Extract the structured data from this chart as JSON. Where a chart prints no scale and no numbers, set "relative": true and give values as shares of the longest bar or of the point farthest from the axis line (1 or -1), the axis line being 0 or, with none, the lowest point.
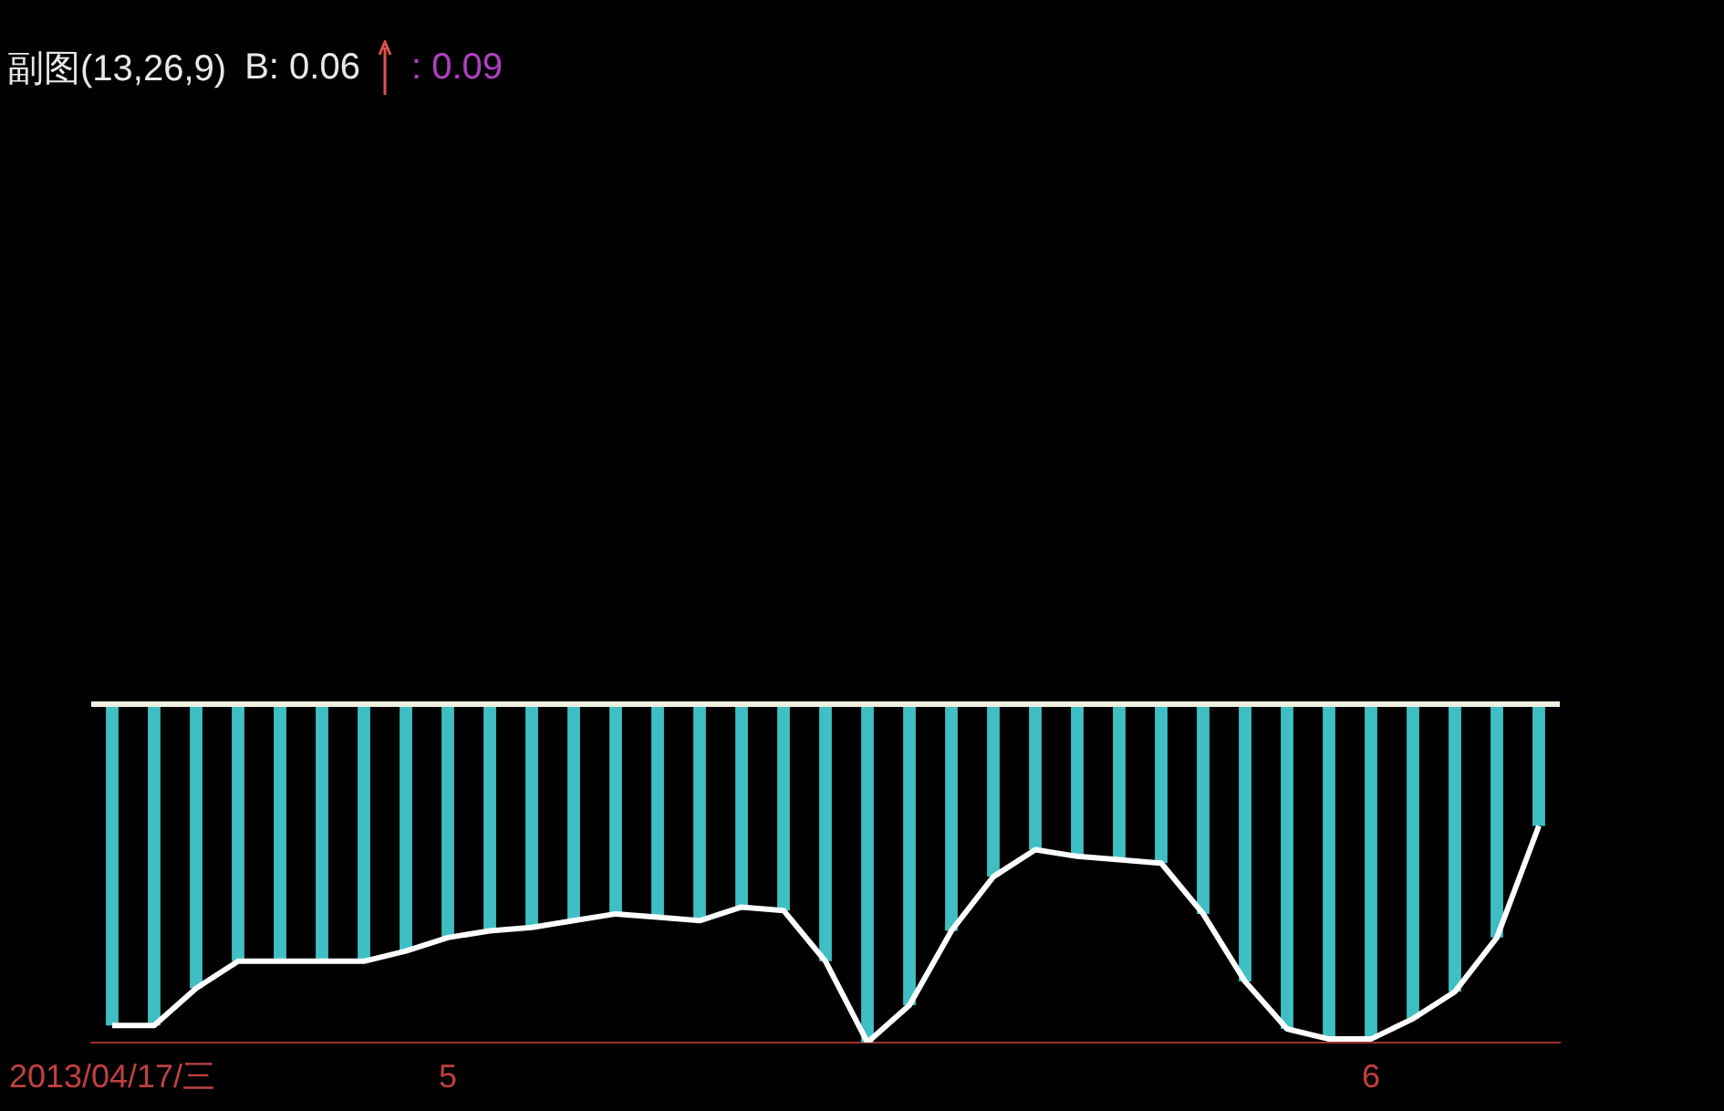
{
  "chart_data": {
    "type": "bar",
    "title": "副图(13,26,9)",
    "annotations": [
      "B: 0.06",
      ": 0.09"
    ],
    "relative": true,
    "legend": false,
    "grid": false,
    "categories": [
      "2013/04/17/三",
      null,
      null,
      null,
      null,
      null,
      null,
      null,
      "5",
      null,
      null,
      null,
      null,
      null,
      null,
      null,
      null,
      null,
      null,
      null,
      null,
      null,
      null,
      null,
      null,
      null,
      null,
      null,
      null,
      null,
      "6",
      null,
      null,
      null,
      null
    ],
    "series": [
      {
        "color": "#3fbfc4",
        "values": [
          -0.95,
          -0.95,
          -0.84,
          -0.76,
          -0.76,
          -0.76,
          -0.76,
          -0.73,
          -0.69,
          -0.67,
          -0.66,
          -0.64,
          -0.62,
          -0.63,
          -0.64,
          -0.6,
          -0.61,
          -0.76,
          -1,
          -0.89,
          -0.67,
          -0.51,
          -0.43,
          -0.45,
          -0.46,
          -0.47,
          -0.62,
          -0.82,
          -0.96,
          -0.99,
          -0.99,
          -0.93,
          -0.85,
          -0.69,
          -0.36
        ]
      },
      {
        "type": "line",
        "color": "#ffffff",
        "values": [
          -0.95,
          -0.95,
          -0.84,
          -0.76,
          -0.76,
          -0.76,
          -0.76,
          -0.73,
          -0.69,
          -0.67,
          -0.66,
          -0.64,
          -0.62,
          -0.63,
          -0.64,
          -0.6,
          -0.61,
          -0.76,
          -1,
          -0.89,
          -0.67,
          -0.51,
          -0.43,
          -0.45,
          -0.46,
          -0.47,
          -0.62,
          -0.82,
          -0.96,
          -0.99,
          -0.99,
          -0.93,
          -0.85,
          -0.69,
          -0.36
        ]
      }
    ]
  }
}
